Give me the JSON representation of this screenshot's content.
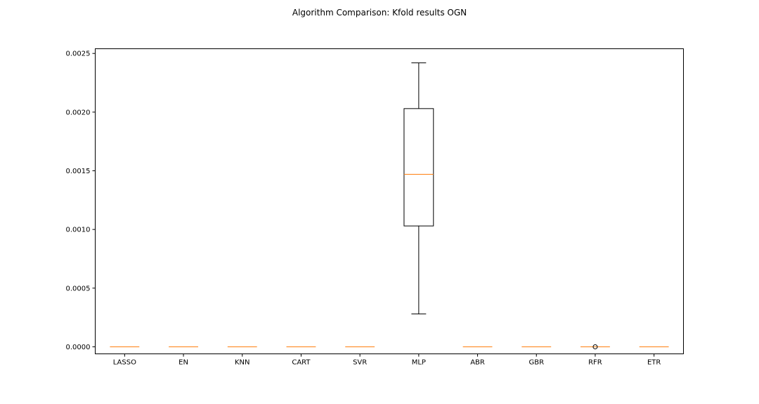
{
  "chart_data": {
    "type": "box",
    "title": "Algorithm Comparison: Kfold results OGN",
    "xlabel": "",
    "ylabel": "",
    "categories": [
      "LASSO",
      "EN",
      "KNN",
      "CART",
      "SVR",
      "MLP",
      "ABR",
      "GBR",
      "RFR",
      "ETR"
    ],
    "ylim": [
      -6e-05,
      0.00254
    ],
    "yticks": [
      0.0,
      0.0005,
      0.001,
      0.0015,
      0.002,
      0.0025
    ],
    "ytick_labels": [
      "0.0000",
      "0.0005",
      "0.0010",
      "0.0015",
      "0.0020",
      "0.0025"
    ],
    "boxes": [
      {
        "label": "LASSO",
        "whisker_low": 0.0,
        "q1": 0.0,
        "median": 0.0,
        "q3": 0.0,
        "whisker_high": 0.0,
        "outliers": []
      },
      {
        "label": "EN",
        "whisker_low": 0.0,
        "q1": 0.0,
        "median": 0.0,
        "q3": 0.0,
        "whisker_high": 0.0,
        "outliers": []
      },
      {
        "label": "KNN",
        "whisker_low": 0.0,
        "q1": 0.0,
        "median": 0.0,
        "q3": 0.0,
        "whisker_high": 0.0,
        "outliers": []
      },
      {
        "label": "CART",
        "whisker_low": 0.0,
        "q1": 0.0,
        "median": 0.0,
        "q3": 0.0,
        "whisker_high": 0.0,
        "outliers": []
      },
      {
        "label": "SVR",
        "whisker_low": 0.0,
        "q1": 0.0,
        "median": 0.0,
        "q3": 0.0,
        "whisker_high": 0.0,
        "outliers": []
      },
      {
        "label": "MLP",
        "whisker_low": 0.00028,
        "q1": 0.00103,
        "median": 0.00147,
        "q3": 0.00203,
        "whisker_high": 0.00242,
        "outliers": []
      },
      {
        "label": "ABR",
        "whisker_low": 0.0,
        "q1": 0.0,
        "median": 0.0,
        "q3": 0.0,
        "whisker_high": 0.0,
        "outliers": []
      },
      {
        "label": "GBR",
        "whisker_low": 0.0,
        "q1": 0.0,
        "median": 0.0,
        "q3": 0.0,
        "whisker_high": 0.0,
        "outliers": []
      },
      {
        "label": "RFR",
        "whisker_low": 0.0,
        "q1": 0.0,
        "median": 0.0,
        "q3": 0.0,
        "whisker_high": 0.0,
        "outliers": [
          0.0
        ]
      },
      {
        "label": "ETR",
        "whisker_low": 0.0,
        "q1": 0.0,
        "median": 0.0,
        "q3": 0.0,
        "whisker_high": 0.0,
        "outliers": []
      }
    ],
    "grid": false,
    "legend": "none",
    "colors": {
      "box": "#000000",
      "median": "#ff7f0e",
      "outlier": "#000000",
      "background": "#ffffff"
    }
  }
}
